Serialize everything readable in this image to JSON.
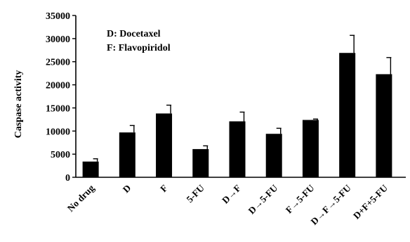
{
  "chart_data": {
    "type": "bar",
    "title": "",
    "xlabel": "",
    "ylabel": "Caspase activity",
    "ylim": [
      0,
      35000
    ],
    "yticks": [
      0,
      5000,
      10000,
      15000,
      20000,
      25000,
      30000,
      35000
    ],
    "categories": [
      "No drug",
      "D",
      "F",
      "5-FU",
      "D→F",
      "D→5-FU",
      "F→5-FU",
      "D→F→5-FU",
      "D+F+5-FU"
    ],
    "values": [
      3400,
      9700,
      13800,
      6100,
      12100,
      9400,
      12400,
      26900,
      22300
    ],
    "errors": [
      600,
      1500,
      1800,
      700,
      2000,
      1200,
      200,
      3800,
      3600
    ],
    "bar_color": "#000000",
    "annotations": [
      "D: Docetaxel",
      "F: Flavopiridol"
    ],
    "grid": false
  }
}
